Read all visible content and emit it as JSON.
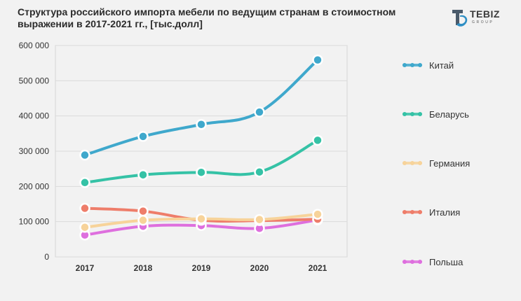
{
  "title": "Структура российского импорта мебели по ведущим странам в стоимостном выражении в 2017-2021 гг., [тыс.долл]",
  "logo": {
    "name": "TEBIZ",
    "sub": "GROUP"
  },
  "colors": {
    "Китай": "#3fa8cc",
    "Беларусь": "#35c2a6",
    "Германия": "#f7d39a",
    "Италия": "#ee7d6a",
    "Польша": "#de6fde"
  },
  "chart_data": {
    "type": "line",
    "title": "Структура российского импорта мебели по ведущим странам в стоимостном выражении в 2017-2021 гг., [тыс.долл]",
    "xlabel": "",
    "ylabel": "",
    "categories": [
      "2017",
      "2018",
      "2019",
      "2020",
      "2021"
    ],
    "ylim": [
      0,
      600000
    ],
    "yticks": [
      0,
      100000,
      200000,
      300000,
      400000,
      500000,
      600000
    ],
    "ytick_labels": [
      "0",
      "100 000",
      "200 000",
      "300 000",
      "400 000",
      "500 000",
      "600 000"
    ],
    "grid": true,
    "legend": "right",
    "series": [
      {
        "name": "Китай",
        "values": [
          289000,
          342000,
          376000,
          411000,
          559000
        ]
      },
      {
        "name": "Беларусь",
        "values": [
          211000,
          233000,
          240000,
          241000,
          331000
        ]
      },
      {
        "name": "Германия",
        "values": [
          84000,
          104000,
          108000,
          106000,
          121000
        ]
      },
      {
        "name": "Италия",
        "values": [
          138000,
          130000,
          104000,
          103000,
          107000
        ]
      },
      {
        "name": "Польша",
        "values": [
          62000,
          87000,
          89000,
          81000,
          105000
        ]
      }
    ]
  }
}
